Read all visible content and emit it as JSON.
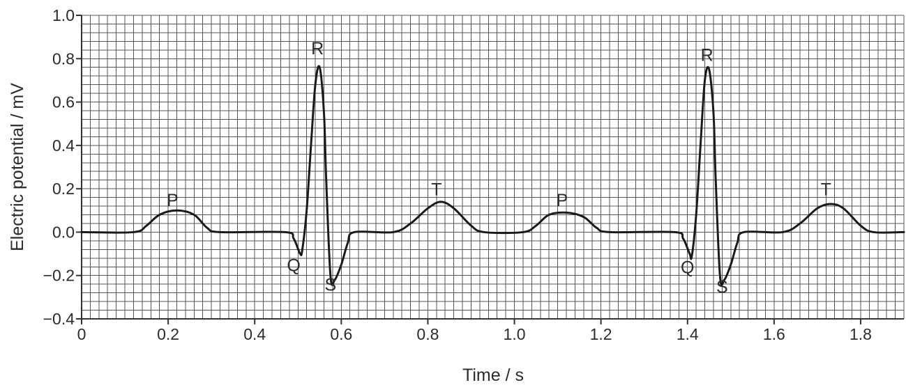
{
  "chart_data": {
    "type": "line",
    "title": "",
    "xlabel": "Time / s",
    "ylabel": "Electric potential / mV",
    "xlim": [
      0,
      1.9
    ],
    "ylim": [
      -0.4,
      1.0
    ],
    "x_ticks": [
      0,
      0.2,
      0.4,
      0.6,
      0.8,
      1.0,
      1.2,
      1.4,
      1.6,
      1.8
    ],
    "x_tick_labels": [
      "0",
      "0.2",
      "0.4",
      "0.6",
      "0.8",
      "1.0",
      "1.2",
      "1.4",
      "1.6",
      "1.8"
    ],
    "y_ticks": [
      -0.4,
      -0.2,
      0.0,
      0.2,
      0.4,
      0.6,
      0.8,
      1.0
    ],
    "y_tick_labels": [
      "−0.4",
      "−0.2",
      "0.0",
      "0.2",
      "0.4",
      "0.6",
      "0.8",
      "1.0"
    ],
    "grid": true,
    "grid_minor_step": {
      "x": 0.02,
      "y": 0.04
    },
    "colors": {
      "line": "#1a1a1a",
      "grid": "#555555",
      "axis": "#333333"
    },
    "series": [
      {
        "x": [
          0,
          0.12,
          0.15,
          0.18,
          0.22,
          0.26,
          0.29,
          0.32,
          0.47,
          0.49,
          0.505,
          0.51,
          0.52,
          0.53,
          0.54,
          0.55,
          0.56,
          0.565,
          0.575,
          0.585,
          0.6,
          0.615,
          0.63,
          0.72,
          0.76,
          0.8,
          0.83,
          0.86,
          0.9,
          0.93,
          1.02,
          1.05,
          1.08,
          1.12,
          1.16,
          1.19,
          1.22,
          1.37,
          1.39,
          1.405,
          1.41,
          1.42,
          1.43,
          1.44,
          1.45,
          1.46,
          1.465,
          1.475,
          1.485,
          1.5,
          1.515,
          1.53,
          1.62,
          1.66,
          1.7,
          1.73,
          1.76,
          1.8,
          1.83,
          1.9
        ],
        "y": [
          0,
          0,
          0.03,
          0.08,
          0.1,
          0.08,
          0.02,
          0,
          0,
          -0.03,
          -0.1,
          -0.08,
          0.1,
          0.4,
          0.68,
          0.76,
          0.55,
          0.25,
          -0.2,
          -0.22,
          -0.15,
          -0.05,
          0,
          0,
          0.04,
          0.11,
          0.14,
          0.11,
          0.03,
          0,
          0,
          0.03,
          0.08,
          0.09,
          0.07,
          0.02,
          0,
          0,
          -0.03,
          -0.1,
          -0.11,
          0.08,
          0.4,
          0.7,
          0.75,
          0.55,
          0.25,
          -0.2,
          -0.22,
          -0.15,
          -0.05,
          0,
          0,
          0.04,
          0.11,
          0.13,
          0.11,
          0.03,
          0,
          0
        ]
      }
    ],
    "annotations": [
      {
        "text": "P",
        "x": 0.21,
        "y": 0.12
      },
      {
        "text": "R",
        "x": 0.545,
        "y": 0.82
      },
      {
        "text": "Q",
        "x": 0.49,
        "y": -0.18
      },
      {
        "text": "S",
        "x": 0.575,
        "y": -0.27
      },
      {
        "text": "T",
        "x": 0.82,
        "y": 0.17
      },
      {
        "text": "P",
        "x": 1.11,
        "y": 0.12
      },
      {
        "text": "R",
        "x": 1.445,
        "y": 0.79
      },
      {
        "text": "Q",
        "x": 1.4,
        "y": -0.19
      },
      {
        "text": "S",
        "x": 1.48,
        "y": -0.28
      },
      {
        "text": "T",
        "x": 1.72,
        "y": 0.17
      }
    ]
  }
}
